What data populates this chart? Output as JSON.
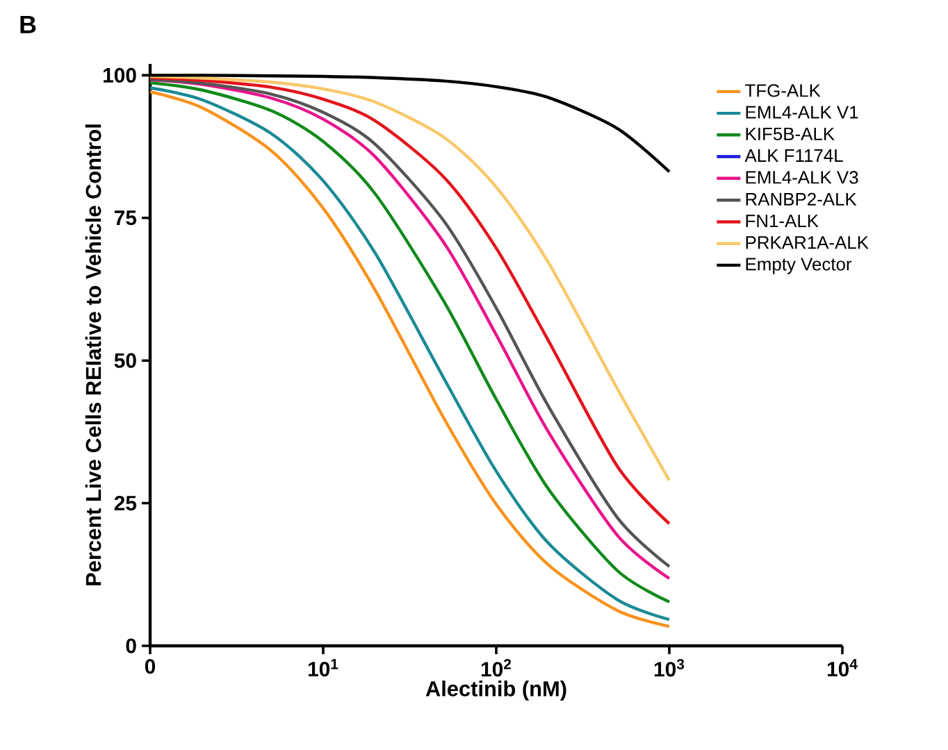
{
  "chart_data": {
    "type": "line",
    "annotations": [
      "B"
    ],
    "xlabel": "Alectinib (nM)",
    "ylabel": "Percent Live Cells REIative to Vehicle Control",
    "log": "x",
    "legend": "top right",
    "x": [
      1,
      2,
      5,
      10,
      20,
      50,
      100,
      200,
      500,
      1000
    ],
    "xlim": [
      0,
      10000
    ],
    "xticks": [
      0,
      {
        "value": 10,
        "label": "10$^{1}$"
      },
      {
        "value": 100,
        "label": "10$^{2}$"
      },
      {
        "value": 1000,
        "label": "10$^{3}$"
      },
      {
        "value": 10000,
        "label": "10$^{4}$"
      }
    ],
    "ylim": [
      0,
      102
    ],
    "yticks": [
      0,
      25,
      50,
      75,
      100
    ],
    "series": [
      {
        "name": "TFG-ALK",
        "color": "#f7931e",
        "values": [
          97.1,
          94.3,
          86.8,
          76.7,
          62.3,
          39.8,
          24.8,
          14.2,
          6.2,
          3.4
        ]
      },
      {
        "name": "EML4-ALK V1",
        "color": "#1a8a96",
        "values": [
          97.8,
          95.7,
          89.8,
          81.5,
          68.8,
          46.8,
          30.6,
          18.0,
          8.1,
          4.6
        ]
      },
      {
        "name": "KIF5B-ALK",
        "color": "#118a1c",
        "values": [
          98.7,
          97.4,
          93.8,
          88.4,
          79.2,
          60.3,
          43.2,
          27.5,
          13.2,
          7.7
        ]
      },
      {
        "name": "ALK F1174L",
        "color": "#1a1adb",
        "values": [
          null,
          null,
          null,
          null,
          null,
          null,
          null,
          null,
          null,
          null
        ]
      },
      {
        "name": "EML4-ALK V3",
        "color": "#e8158c",
        "values": [
          99.2,
          98.4,
          96.0,
          92.3,
          85.7,
          70.6,
          54.5,
          37.5,
          19.4,
          11.8
        ]
      },
      {
        "name": "RANBP2-ALK",
        "color": "#555555",
        "values": [
          99.3,
          98.6,
          96.7,
          93.5,
          87.9,
          74.4,
          59.2,
          42.0,
          22.5,
          13.9
        ]
      },
      {
        "name": "FN1-ALK",
        "color": "#e3141c",
        "values": [
          99.6,
          99.1,
          97.9,
          95.8,
          92.0,
          82.1,
          69.7,
          53.5,
          31.5,
          21.4
        ]
      },
      {
        "name": "PRKAR1A-ALK",
        "color": "#f9c86a",
        "values": [
          99.8,
          99.5,
          98.8,
          97.6,
          95.3,
          89.1,
          80.4,
          67.2,
          45.1,
          29.0
        ]
      },
      {
        "name": "Empty Vector",
        "color": "#000000",
        "values": [
          100,
          100,
          99.9,
          99.8,
          99.6,
          99.0,
          98.0,
          96.1,
          90.7,
          83.1
        ]
      }
    ]
  }
}
